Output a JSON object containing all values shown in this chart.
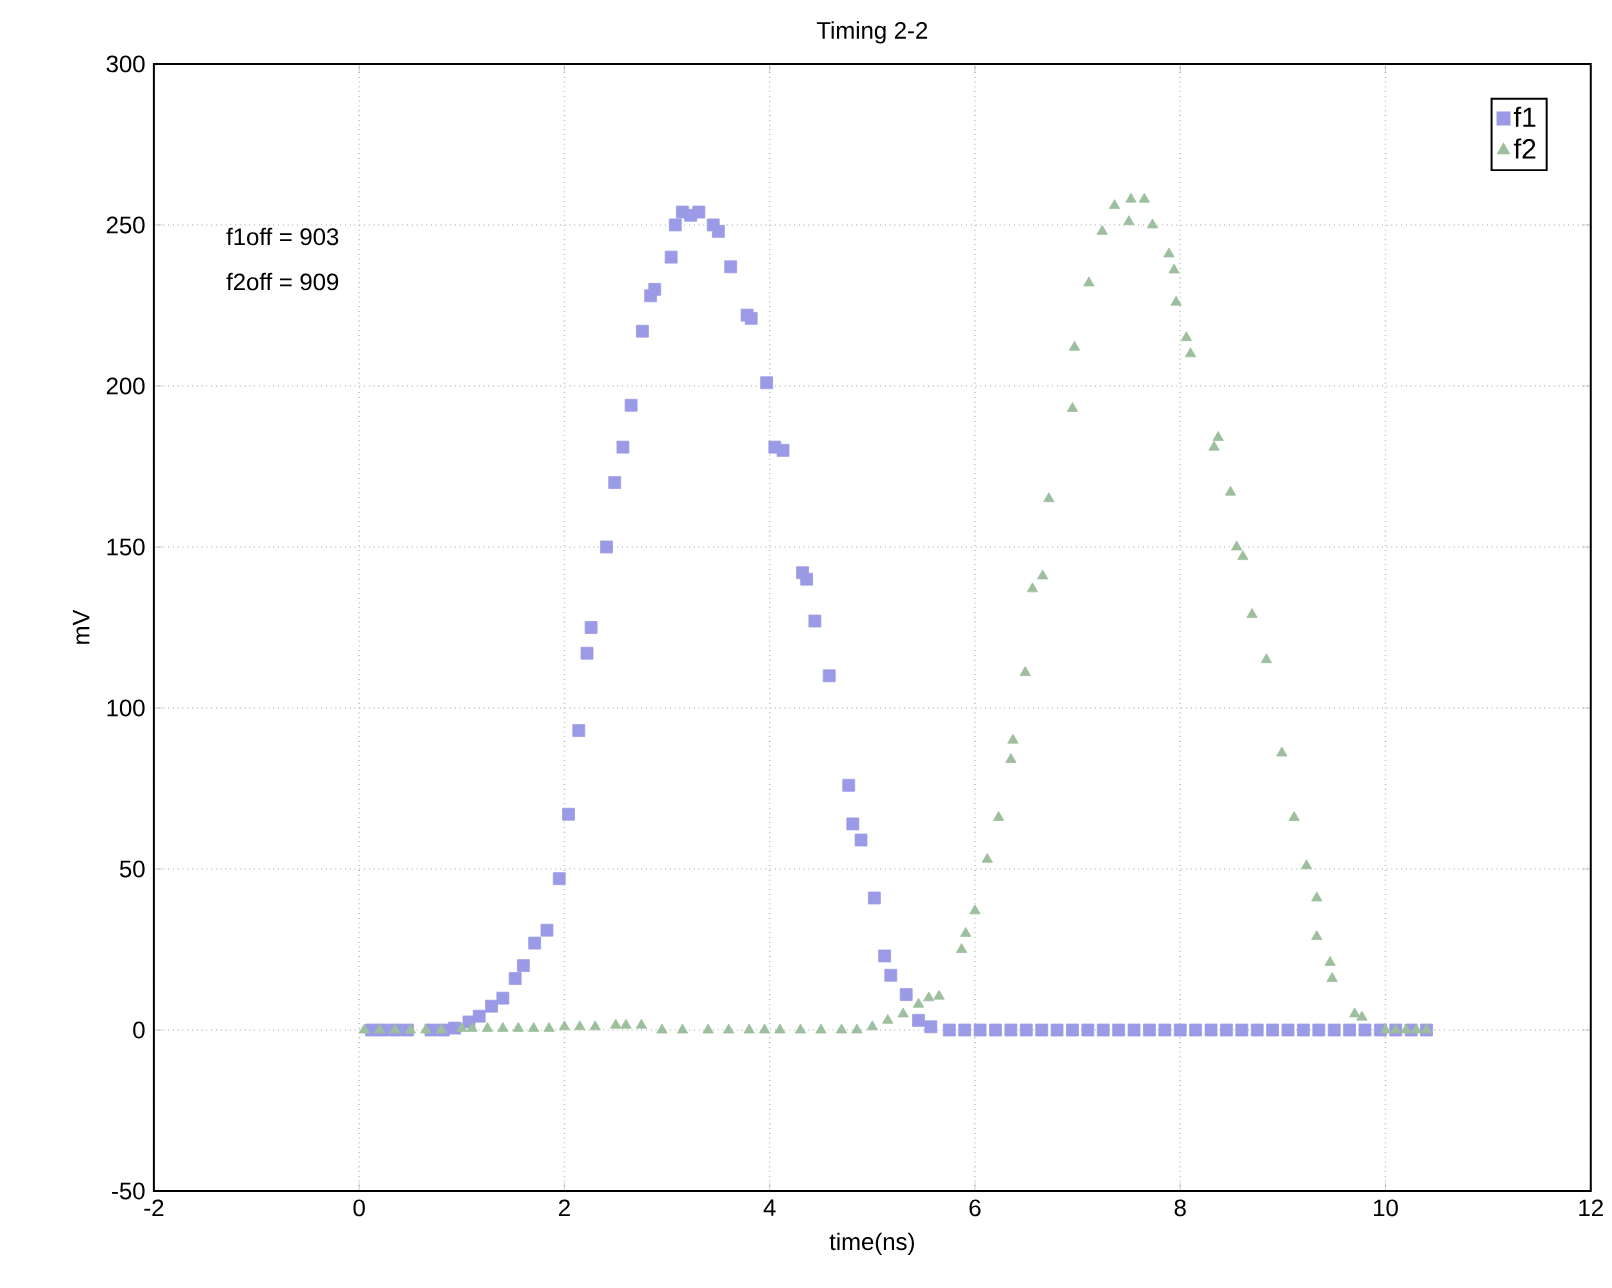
{
  "chart_data": {
    "type": "scatter",
    "title": "Timing 2-2",
    "xlabel": "time(ns)",
    "ylabel": "mV",
    "xlim": [
      -2,
      12
    ],
    "ylim": [
      -50,
      300
    ],
    "xticks": [
      -2,
      0,
      2,
      4,
      6,
      8,
      10,
      12
    ],
    "yticks": [
      -50,
      0,
      50,
      100,
      150,
      200,
      250,
      300
    ],
    "grid": true,
    "legend": "top right",
    "annotations": [
      "f1off = 903",
      "f2off = 909"
    ],
    "series": [
      {
        "name": "f1",
        "color": "#9a9ae6",
        "marker": "square",
        "x": [
          0.12,
          0.23,
          0.35,
          0.47,
          0.7,
          0.82,
          0.93,
          1.07,
          1.17,
          1.29,
          1.4,
          1.52,
          1.6,
          1.71,
          1.83,
          1.95,
          2.04,
          2.14,
          2.22,
          2.26,
          2.41,
          2.49,
          2.57,
          2.65,
          2.76,
          2.84,
          2.88,
          3.04,
          3.08,
          3.15,
          3.23,
          3.31,
          3.45,
          3.5,
          3.62,
          3.78,
          3.82,
          3.97,
          4.05,
          4.13,
          4.32,
          4.36,
          4.44,
          4.58,
          4.77,
          4.81,
          4.89,
          5.02,
          5.12,
          5.18,
          5.33,
          5.45,
          5.57,
          5.75,
          5.9,
          6.05,
          6.2,
          6.35,
          6.5,
          6.65,
          6.8,
          6.95,
          7.1,
          7.25,
          7.4,
          7.55,
          7.7,
          7.85,
          8.0,
          8.15,
          8.3,
          8.45,
          8.6,
          8.75,
          8.9,
          9.05,
          9.2,
          9.35,
          9.5,
          9.65,
          9.8,
          9.95,
          10.1,
          10.25,
          10.4
        ],
        "values": [
          0,
          0,
          0,
          0,
          0,
          0,
          0.6,
          2.5,
          4.3,
          7.4,
          9.9,
          16,
          20,
          27,
          31,
          47,
          67,
          93,
          117,
          125,
          150,
          170,
          181,
          194,
          217,
          228,
          230,
          240,
          250,
          254,
          253,
          254,
          250,
          248,
          237,
          222,
          221,
          201,
          181,
          180,
          142,
          140,
          127,
          110,
          76,
          64,
          59,
          41,
          23,
          17,
          11,
          3,
          1,
          0,
          0,
          0,
          0,
          0,
          0,
          0,
          0,
          0,
          0,
          0,
          0,
          0,
          0,
          0,
          0,
          0,
          0,
          0,
          0,
          0,
          0,
          0,
          0,
          0,
          0,
          0,
          0,
          0,
          0,
          0,
          0
        ]
      },
      {
        "name": "f2",
        "color": "#9dbf9d",
        "marker": "triangle",
        "x": [
          0.05,
          0.2,
          0.35,
          0.5,
          0.65,
          0.8,
          1.0,
          1.1,
          1.25,
          1.4,
          1.55,
          1.7,
          1.85,
          2.0,
          2.15,
          2.3,
          2.5,
          2.6,
          2.75,
          2.95,
          3.15,
          3.4,
          3.6,
          3.8,
          3.95,
          4.1,
          4.3,
          4.5,
          4.7,
          4.85,
          5.0,
          5.15,
          5.3,
          5.45,
          5.55,
          5.65,
          5.87,
          5.91,
          6.0,
          6.12,
          6.23,
          6.35,
          6.37,
          6.49,
          6.56,
          6.66,
          6.72,
          6.95,
          6.97,
          7.11,
          7.24,
          7.36,
          7.5,
          7.52,
          7.65,
          7.73,
          7.89,
          7.94,
          7.96,
          8.06,
          8.1,
          8.33,
          8.37,
          8.49,
          8.55,
          8.61,
          8.7,
          8.84,
          8.99,
          9.11,
          9.23,
          9.33,
          9.33,
          9.46,
          9.48,
          9.7,
          9.77,
          10.0,
          10.1,
          10.2,
          10.3,
          10.4
        ],
        "values": [
          0,
          0,
          0,
          0,
          0,
          0,
          0.5,
          0.5,
          0.5,
          0.5,
          0.5,
          0.5,
          0.5,
          1,
          1,
          1,
          1.5,
          1.5,
          1.5,
          0,
          0,
          0,
          0,
          0,
          0,
          0,
          0,
          0,
          0,
          0,
          1,
          3,
          5,
          8,
          10,
          10.5,
          25,
          30,
          37,
          53,
          66,
          84,
          90,
          111,
          137,
          141,
          165,
          193,
          212,
          232,
          248,
          256,
          251,
          258,
          258,
          250,
          241,
          236,
          226,
          215,
          210,
          181,
          184,
          167,
          150,
          147,
          129,
          115,
          86,
          66,
          51,
          41,
          29,
          21,
          16,
          5,
          4,
          0,
          0,
          0,
          0,
          0
        ]
      }
    ]
  }
}
